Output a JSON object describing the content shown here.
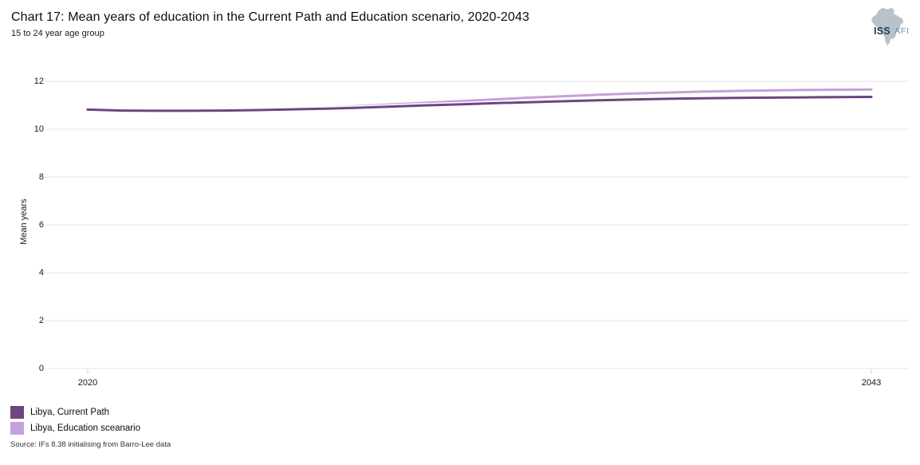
{
  "header": {
    "title": "Chart 17: Mean years of education in the Current Path and Education scenario, 2020-2043",
    "subtitle": "15 to 24 year age group"
  },
  "logo": {
    "primary": "ISS",
    "secondary": "AFI"
  },
  "chart_data": {
    "type": "line",
    "title": "Chart 17: Mean years of education in the Current Path and Education scenario, 2020-2043",
    "subtitle": "15 to 24 year age group",
    "xlabel": "",
    "ylabel": "Mean years",
    "ylim": [
      0,
      12
    ],
    "yticks": [
      0,
      2,
      4,
      6,
      8,
      10,
      12
    ],
    "xlim": [
      2020,
      2043
    ],
    "xticks_shown": [
      "2020",
      "2043"
    ],
    "grid": "horizontal-only",
    "legend_position": "bottom-left",
    "x": [
      2020,
      2021,
      2022,
      2023,
      2024,
      2025,
      2026,
      2027,
      2028,
      2029,
      2030,
      2031,
      2032,
      2033,
      2034,
      2035,
      2036,
      2037,
      2038,
      2039,
      2040,
      2041,
      2042,
      2043
    ],
    "series": [
      {
        "name": "Libya, Current Path",
        "color": "#6D4580",
        "values": [
          10.82,
          10.78,
          10.77,
          10.77,
          10.78,
          10.8,
          10.83,
          10.86,
          10.9,
          10.95,
          11.0,
          11.04,
          11.09,
          11.13,
          11.17,
          11.21,
          11.24,
          11.27,
          11.29,
          11.31,
          11.32,
          11.33,
          11.34,
          11.35
        ]
      },
      {
        "name": "Libya, Education sceanario",
        "color": "#C5A0D9",
        "values": [
          10.82,
          10.78,
          10.77,
          10.77,
          10.79,
          10.82,
          10.86,
          10.91,
          10.97,
          11.04,
          11.11,
          11.18,
          11.25,
          11.32,
          11.38,
          11.44,
          11.49,
          11.53,
          11.57,
          11.6,
          11.62,
          11.64,
          11.65,
          11.66
        ]
      }
    ]
  },
  "source": "Source: IFs 8.38 initialising from Barro-Lee data",
  "colors": {
    "gridline": "#e6e6e6",
    "tick_mark": "#c9c9c9",
    "africa_silhouette": "#b7c2cb"
  }
}
